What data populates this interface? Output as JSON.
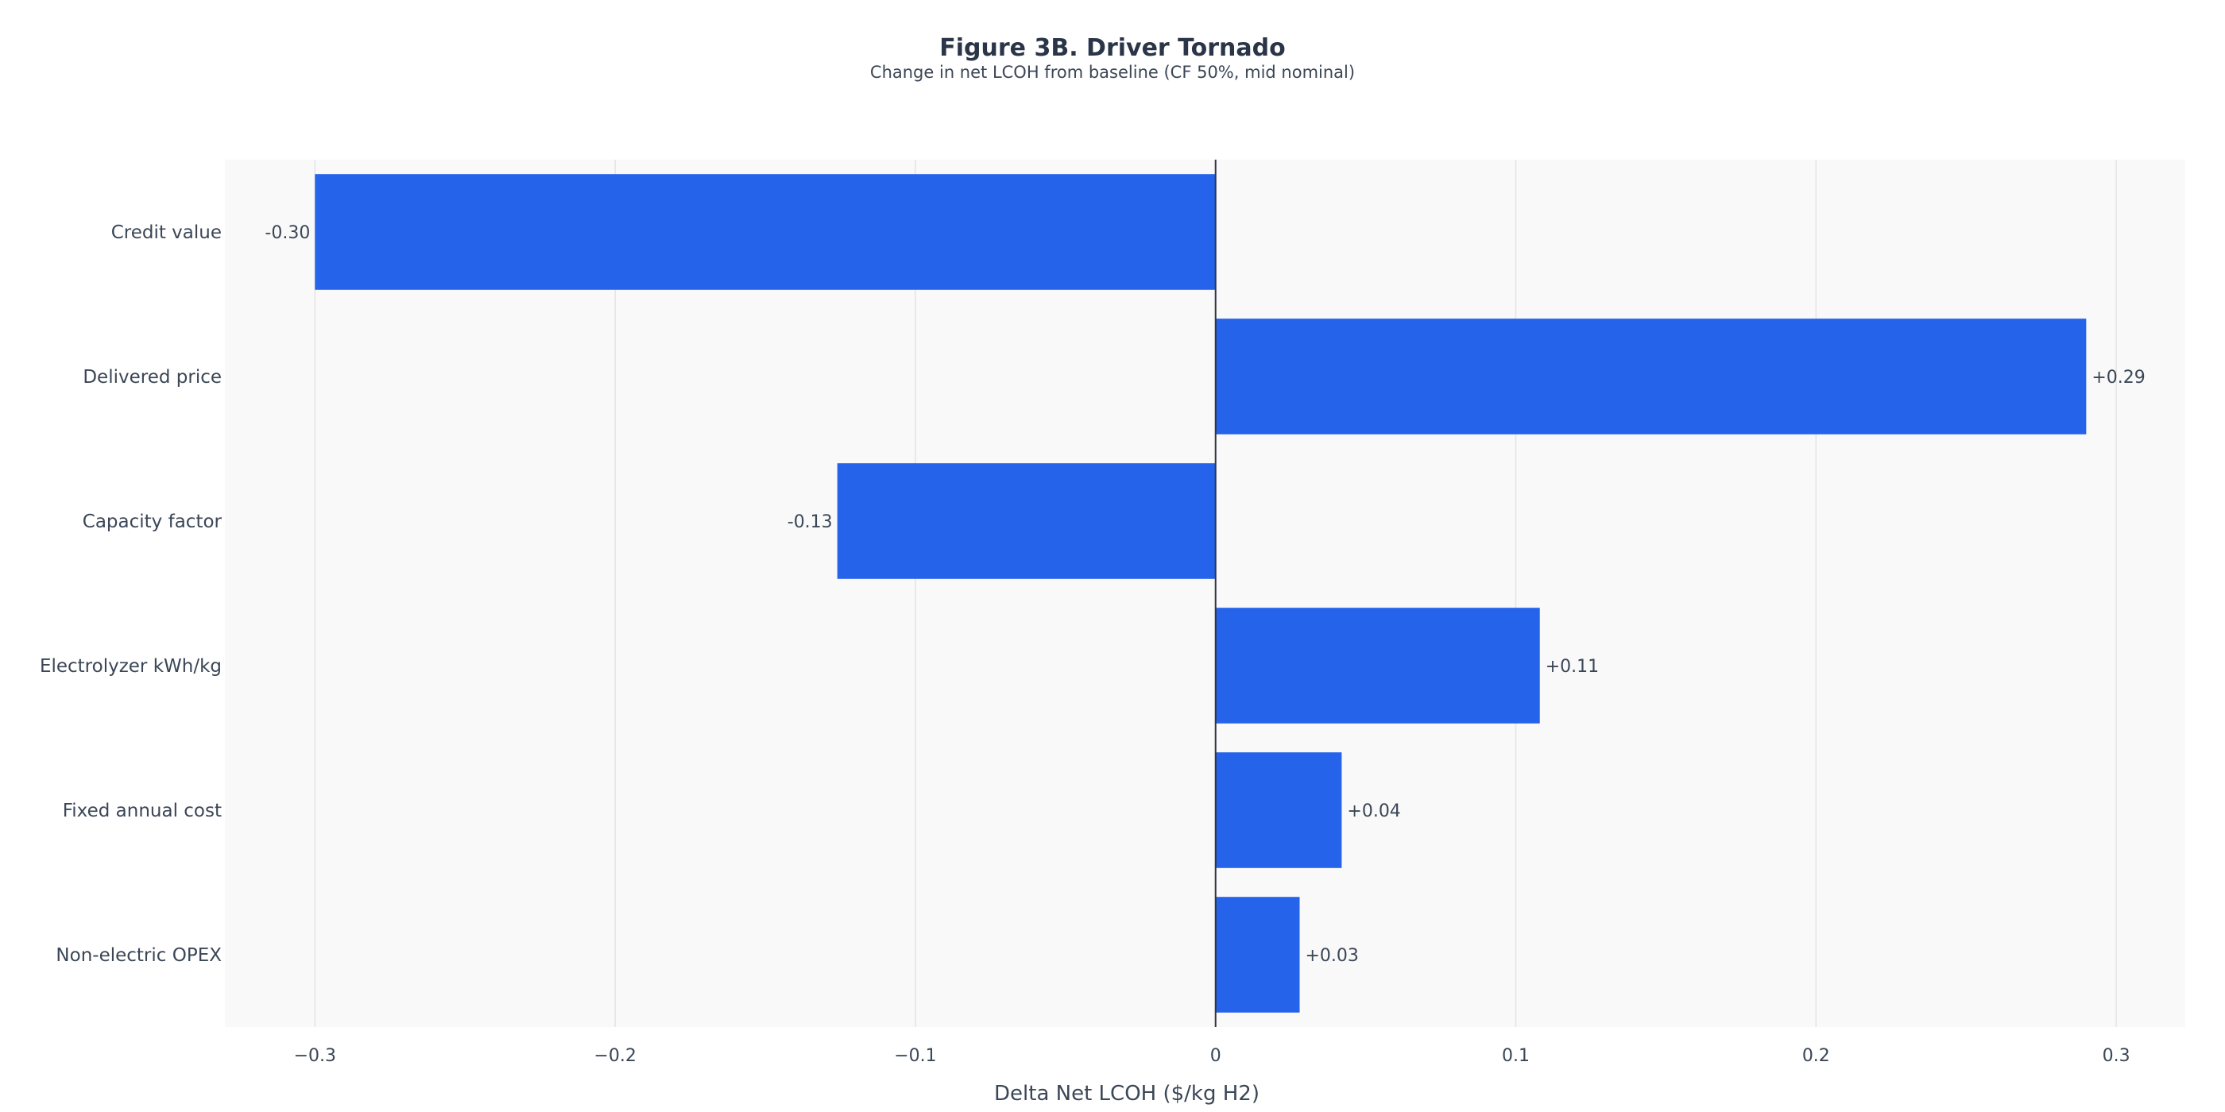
{
  "chart_data": {
    "type": "bar",
    "orientation": "horizontal",
    "title": "Figure 3B. Driver Tornado",
    "subtitle": "Change in net LCOH from baseline (CF 50%, mid nominal)",
    "xlabel": "Delta Net LCOH ($/kg H2)",
    "ylabel": "",
    "xlim": [
      -0.33,
      0.323
    ],
    "xticks": [
      -0.3,
      -0.2,
      -0.1,
      0,
      0.1,
      0.2,
      0.3
    ],
    "xtick_labels": [
      "−0.3",
      "−0.2",
      "−0.1",
      "0",
      "0.1",
      "0.2",
      "0.3"
    ],
    "grid": true,
    "legend": "none",
    "categories": [
      "Credit value",
      "Delivered price",
      "Capacity factor",
      "Electrolyzer kWh/kg",
      "Fixed annual cost",
      "Non-electric OPEX"
    ],
    "values": [
      -0.3,
      0.29,
      -0.126,
      0.108,
      0.042,
      0.028
    ],
    "value_labels": [
      "-0.30",
      "+0.29",
      "-0.13",
      "+0.11",
      "+0.04",
      "+0.03"
    ],
    "bar_color": "#2563eb",
    "plot_background": "#f9f9f9",
    "grid_color": "#e4e4e4",
    "zero_line_color": "#2f3640"
  }
}
